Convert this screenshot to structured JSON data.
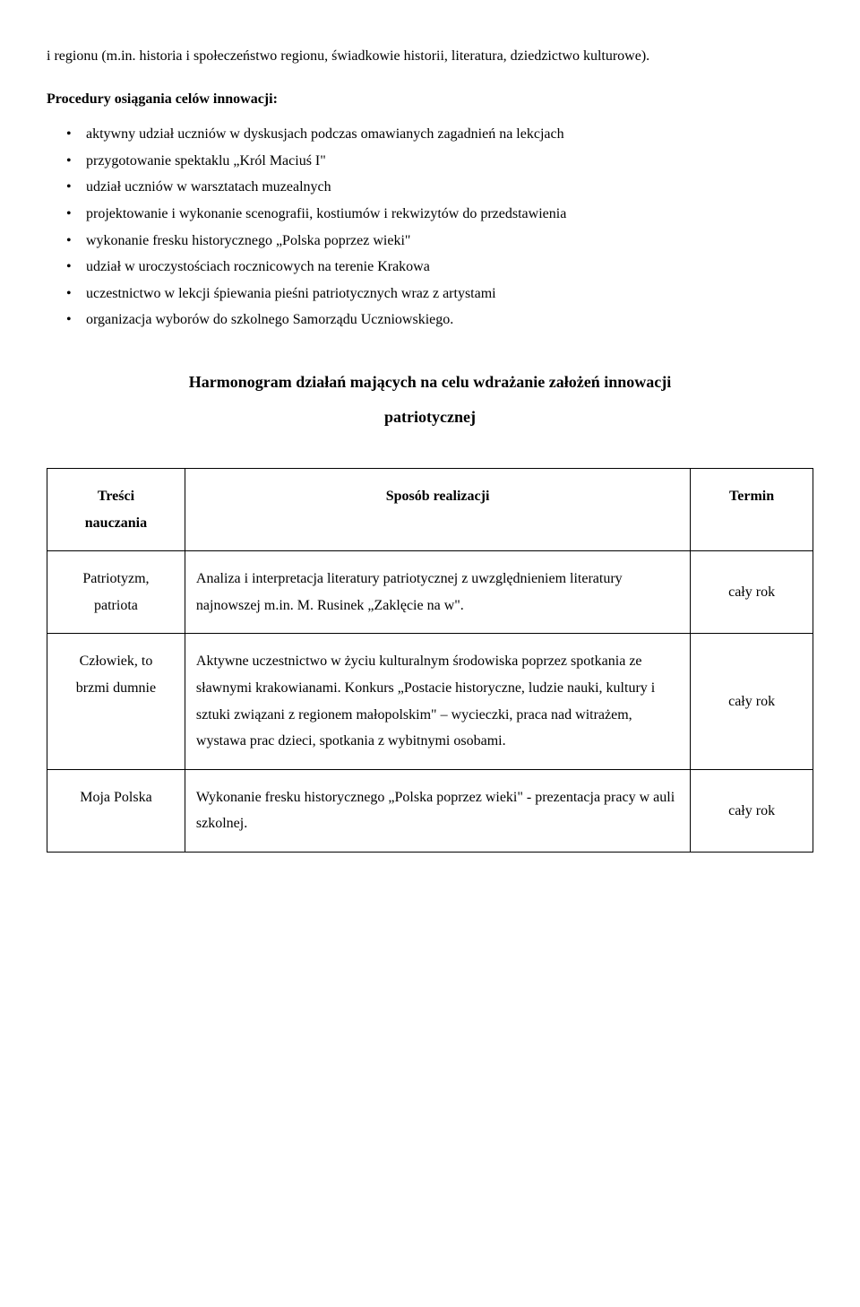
{
  "intro_para": "i regionu (m.in. historia i społeczeństwo regionu, świadkowie historii, literatura, dziedzictwo kulturowe).",
  "section_title": "Procedury osiągania celów innowacji:",
  "bullets": [
    "aktywny udział uczniów w dyskusjach podczas omawianych zagadnień na lekcjach",
    "przygotowanie spektaklu „Król Maciuś I\"",
    "udział uczniów w warsztatach muzealnych",
    "projektowanie  i wykonanie scenografii, kostiumów i rekwizytów do przedstawienia",
    "wykonanie fresku historycznego „Polska poprzez wieki\"",
    "udział w uroczystościach rocznicowych na terenie Krakowa",
    "uczestnictwo w lekcji śpiewania pieśni patriotycznych wraz z artystami",
    "organizacja wyborów do szkolnego Samorządu Uczniowskiego."
  ],
  "heading_line1": "Harmonogram działań mających na celu wdrażanie założeń innowacji",
  "heading_line2": "patriotycznej",
  "table": {
    "headers": {
      "col1_line1": "Treści",
      "col1_line2": "nauczania",
      "col2": "Sposób realizacji",
      "col3": "Termin"
    },
    "rows": [
      {
        "col1_line1": "Patriotyzm,",
        "col1_line2": "patriota",
        "col2": "Analiza i interpretacja literatury patriotycznej z uwzględnieniem literatury najnowszej m.in. M. Rusinek „Zaklęcie na w\".",
        "col3": "cały rok"
      },
      {
        "col1_line1": "Człowiek, to",
        "col1_line2": "brzmi dumnie",
        "col2": "Aktywne uczestnictwo w życiu kulturalnym środowiska poprzez spotkania ze sławnymi krakowianami. Konkurs „Postacie historyczne, ludzie nauki, kultury i sztuki związani z regionem małopolskim\" – wycieczki, praca nad witrażem, wystawa prac dzieci, spotkania z wybitnymi osobami.",
        "col3": "cały rok"
      },
      {
        "col1_line1": "Moja Polska",
        "col1_line2": "",
        "col2": "Wykonanie fresku historycznego „Polska poprzez wieki\" - prezentacja pracy w auli szkolnej.",
        "col3": "cały rok"
      }
    ]
  }
}
